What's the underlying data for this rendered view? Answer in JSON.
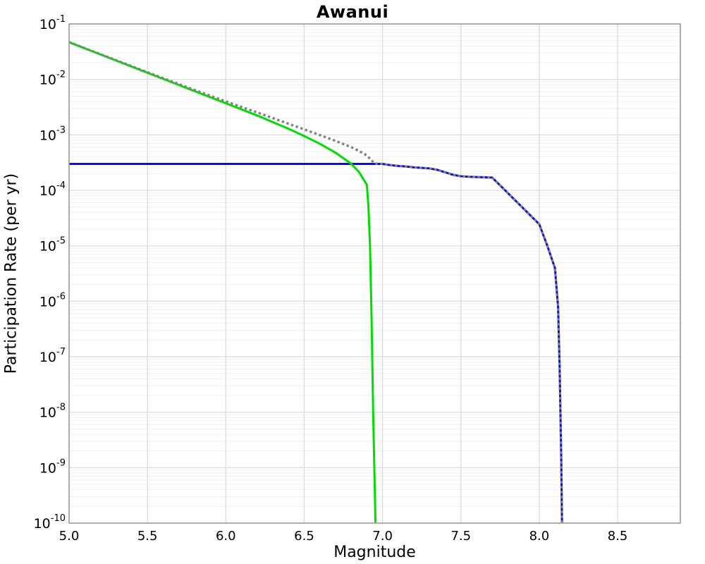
{
  "chart_data": {
    "type": "line",
    "title": "Awanui",
    "xlabel": "Magnitude",
    "ylabel": "Participation Rate (per yr)",
    "xlim": [
      5.0,
      8.9
    ],
    "ylim_log10": [
      -10,
      -1
    ],
    "x_major_ticks": [
      5.0,
      5.5,
      6.0,
      6.5,
      7.0,
      7.5,
      8.0,
      8.5
    ],
    "y_tick_exponents": [
      -1,
      -2,
      -3,
      -4,
      -5,
      -6,
      -7,
      -8,
      -9,
      -10
    ],
    "grid": true,
    "legend_position": "none",
    "colors": {
      "major_grid": "#d9d9d9",
      "minor_grid": "#f0f0f0",
      "border": "#999999",
      "text": "#000000"
    },
    "series": [
      {
        "name": "blue-solid",
        "color": "#0d0de0",
        "style": "solid",
        "width": 3,
        "points_mag_log10rate": [
          [
            5.0,
            -3.523
          ],
          [
            7.0,
            -3.523
          ],
          [
            7.05,
            -3.545
          ],
          [
            7.1,
            -3.56
          ],
          [
            7.15,
            -3.57
          ],
          [
            7.2,
            -3.585
          ],
          [
            7.3,
            -3.605
          ],
          [
            7.35,
            -3.63
          ],
          [
            7.4,
            -3.675
          ],
          [
            7.45,
            -3.72
          ],
          [
            7.5,
            -3.745
          ],
          [
            7.55,
            -3.755
          ],
          [
            7.6,
            -3.76
          ],
          [
            7.65,
            -3.765
          ],
          [
            7.7,
            -3.77
          ],
          [
            7.8,
            -4.05
          ],
          [
            7.9,
            -4.33
          ],
          [
            8.0,
            -4.61
          ],
          [
            8.05,
            -4.99
          ],
          [
            8.1,
            -5.4
          ],
          [
            8.12,
            -6.1
          ],
          [
            8.13,
            -7.2
          ],
          [
            8.14,
            -8.8
          ],
          [
            8.145,
            -10.0
          ]
        ]
      },
      {
        "name": "green-solid",
        "color": "#00dd00",
        "style": "solid",
        "width": 3,
        "points_mag_log10rate": [
          [
            5.0,
            -1.33
          ],
          [
            5.2,
            -1.55
          ],
          [
            5.4,
            -1.77
          ],
          [
            5.6,
            -1.99
          ],
          [
            5.8,
            -2.21
          ],
          [
            6.0,
            -2.43
          ],
          [
            6.1,
            -2.54
          ],
          [
            6.2,
            -2.65
          ],
          [
            6.3,
            -2.77
          ],
          [
            6.4,
            -2.89
          ],
          [
            6.5,
            -3.02
          ],
          [
            6.6,
            -3.16
          ],
          [
            6.7,
            -3.32
          ],
          [
            6.8,
            -3.52
          ],
          [
            6.85,
            -3.67
          ],
          [
            6.9,
            -3.9
          ],
          [
            6.91,
            -4.3
          ],
          [
            6.92,
            -5.0
          ],
          [
            6.93,
            -6.3
          ],
          [
            6.94,
            -8.0
          ],
          [
            6.955,
            -10.0
          ]
        ]
      },
      {
        "name": "gray-dotted-total",
        "color": "#828282",
        "style": "dotted",
        "width": 3.4,
        "points_mag_log10rate": [
          [
            5.0,
            -1.327
          ],
          [
            5.2,
            -1.545
          ],
          [
            5.4,
            -1.762
          ],
          [
            5.6,
            -1.978
          ],
          [
            5.8,
            -2.189
          ],
          [
            6.0,
            -2.396
          ],
          [
            6.2,
            -2.595
          ],
          [
            6.4,
            -2.799
          ],
          [
            6.5,
            -2.901
          ],
          [
            6.6,
            -3.003
          ],
          [
            6.7,
            -3.108
          ],
          [
            6.8,
            -3.22
          ],
          [
            6.85,
            -3.289
          ],
          [
            6.9,
            -3.371
          ],
          [
            6.95,
            -3.516
          ],
          [
            7.0,
            -3.523
          ],
          [
            7.05,
            -3.545
          ],
          [
            7.1,
            -3.56
          ],
          [
            7.15,
            -3.57
          ],
          [
            7.2,
            -3.585
          ],
          [
            7.3,
            -3.605
          ],
          [
            7.35,
            -3.63
          ],
          [
            7.4,
            -3.675
          ],
          [
            7.45,
            -3.72
          ],
          [
            7.5,
            -3.745
          ],
          [
            7.55,
            -3.755
          ],
          [
            7.6,
            -3.76
          ],
          [
            7.65,
            -3.765
          ],
          [
            7.7,
            -3.77
          ],
          [
            7.8,
            -4.05
          ],
          [
            7.9,
            -4.33
          ],
          [
            8.0,
            -4.61
          ],
          [
            8.05,
            -4.99
          ],
          [
            8.1,
            -5.4
          ],
          [
            8.12,
            -6.1
          ],
          [
            8.13,
            -7.2
          ],
          [
            8.14,
            -8.8
          ],
          [
            8.145,
            -10.0
          ]
        ]
      }
    ]
  }
}
